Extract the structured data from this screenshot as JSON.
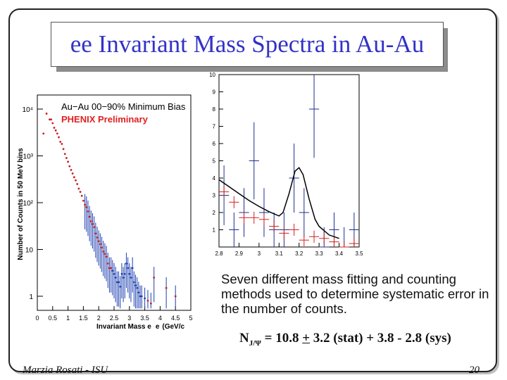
{
  "slide": {
    "title": "ee Invariant Mass Spectra in Au-Au",
    "caption": "Seven different mass fitting and counting methods used to determine systematic error in the number of counts.",
    "equation": {
      "n": "N",
      "sub": "J/Ψ",
      "eq": " = 10.8 ",
      "pm": "+",
      "rest": " 3.2 (stat) + 3.8 - 2.8 (sys)"
    },
    "footer_left": "Marzia Rosati - ISU",
    "page_number": "20"
  },
  "chart_data": [
    {
      "type": "scatter",
      "title": "Au−Au 00−90% Minimum Bias",
      "subtitle": "PHENIX Preliminary",
      "xlabel": "Invariant Mass e⁺e⁻(GeV/c²)",
      "ylabel": "Number of Counts in 50 MeV bins",
      "xlim": [
        0,
        5
      ],
      "ylim": [
        0.5,
        20000
      ],
      "log_y": true,
      "x_ticks": [
        "0",
        "0.5",
        "1",
        "1.5",
        "2",
        "2.5",
        "3",
        "3.5",
        "4",
        "4.5",
        "5"
      ],
      "y_tick_labels": [
        "1",
        "10",
        "10²",
        "10³",
        "10⁴"
      ],
      "series": [
        {
          "x": [
            0.2,
            0.3,
            0.4,
            0.45,
            0.5,
            0.55,
            0.6,
            0.65,
            0.7,
            0.75,
            0.8,
            0.85,
            0.9,
            0.95,
            1.0,
            1.05,
            1.1,
            1.15,
            1.2,
            1.25,
            1.3,
            1.35,
            1.4,
            1.45,
            1.5,
            1.55,
            1.6,
            1.65,
            1.7,
            1.75,
            1.8,
            1.85,
            1.9,
            1.95,
            2.0,
            2.05,
            2.1,
            2.15,
            2.2,
            2.25,
            2.3,
            2.35,
            2.4,
            2.45,
            2.5,
            2.55,
            2.6,
            2.65,
            2.7,
            2.75,
            2.8,
            2.85,
            2.9,
            2.95,
            3.0,
            3.05,
            3.1,
            3.15,
            3.2,
            3.25,
            3.3,
            3.35,
            3.4,
            3.5,
            3.6,
            3.7,
            3.8,
            4.2,
            4.5
          ],
          "y": [
            3000,
            8000,
            6000,
            6000,
            5000,
            4000,
            3500,
            3000,
            2500,
            2000,
            1800,
            1400,
            1100,
            900,
            750,
            600,
            500,
            420,
            350,
            300,
            250,
            200,
            170,
            140,
            110,
            90,
            80,
            65,
            50,
            40,
            35,
            30,
            22,
            18,
            15,
            13,
            11,
            9,
            8,
            7,
            5,
            4,
            4,
            3.5,
            3,
            2.5,
            2,
            2,
            1.6,
            3,
            2.5,
            3,
            5,
            4,
            3,
            2.5,
            4,
            2,
            1.7,
            1.5,
            1.2,
            1,
            1,
            0.9,
            0.8,
            0.7,
            2.5,
            1.5,
            1
          ]
        }
      ],
      "labels": [
        "Au−Au 00−90% Minimum Bias",
        "PHENIX Preliminary",
        "Invariant Mass e",
        "e",
        "(GeV/c",
        "Number of Counts in 50 MeV bins"
      ]
    },
    {
      "type": "line",
      "xlim": [
        2.8,
        3.5
      ],
      "ylim": [
        0,
        10
      ],
      "x_ticks": [
        "2.8",
        "2.9",
        "3",
        "3.1",
        "3.2",
        "3.3",
        "3.4",
        "3.5"
      ],
      "y_ticks": [
        "1",
        "2",
        "3",
        "4",
        "5",
        "6",
        "7",
        "8",
        "9",
        "10"
      ],
      "series": [
        {
          "name": "foreground",
          "x": [
            2.825,
            2.875,
            2.925,
            2.975,
            3.025,
            3.075,
            3.125,
            3.175,
            3.225,
            3.275,
            3.325,
            3.375,
            3.425,
            3.475
          ],
          "y": [
            3,
            1,
            2,
            5,
            2,
            1,
            1,
            4,
            2,
            8,
            0,
            1,
            0,
            1
          ]
        },
        {
          "name": "background",
          "x": [
            2.825,
            2.875,
            2.925,
            2.975,
            3.025,
            3.075,
            3.125,
            3.175,
            3.225,
            3.275,
            3.325,
            3.375,
            3.425,
            3.475
          ],
          "y": [
            3.2,
            2.6,
            1.7,
            1.7,
            1.6,
            1.2,
            0.8,
            1.0,
            0.4,
            0.6,
            0.5,
            0.3,
            0.0,
            0.2
          ]
        },
        {
          "name": "fit",
          "x": [
            2.8,
            2.85,
            2.9,
            2.95,
            3.0,
            3.05,
            3.1,
            3.12,
            3.15,
            3.18,
            3.2,
            3.22,
            3.25,
            3.28,
            3.3,
            3.35,
            3.4
          ],
          "y": [
            3.9,
            3.5,
            3.1,
            2.7,
            2.35,
            2.05,
            1.8,
            2.0,
            3.1,
            4.4,
            4.6,
            4.2,
            2.8,
            1.6,
            1.2,
            0.7,
            0.5
          ]
        }
      ]
    }
  ]
}
